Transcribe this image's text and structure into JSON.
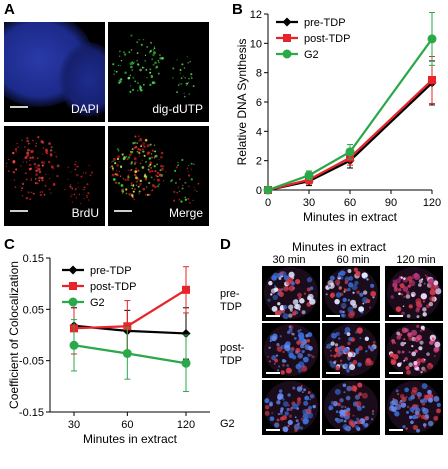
{
  "panel_letters": {
    "a": "A",
    "b": "B",
    "c": "C",
    "d": "D"
  },
  "panel_a": {
    "labels": {
      "dapi": "DAPI",
      "dig": "dig-dUTP",
      "brdu": "BrdU",
      "merge": "Merge"
    }
  },
  "panel_d": {
    "title": "Minutes in extract",
    "columns": [
      "30 min",
      "60 min",
      "120 min"
    ],
    "rows": [
      {
        "line1": "pre-",
        "line2": "TDP"
      },
      {
        "line1": "post-",
        "line2": "TDP"
      },
      {
        "line1": "G2",
        "line2": ""
      }
    ]
  },
  "colors": {
    "pre_tdp": "#000000",
    "post_tdp": "#e8232a",
    "g2": "#2aa84a"
  },
  "chart_data": [
    {
      "type": "line",
      "panel": "B",
      "xlabel": "Minutes in extract",
      "ylabel": "Relative DNA Synthesis",
      "x": [
        0,
        30,
        60,
        120
      ],
      "xticks": [
        0,
        30,
        60,
        90,
        120
      ],
      "yticks": [
        0,
        2,
        4,
        6,
        8,
        10,
        12
      ],
      "xlim": [
        0,
        120
      ],
      "ylim": [
        0,
        12
      ],
      "legend_position": "top-left",
      "grid": false,
      "series": [
        {
          "name": "pre-TDP",
          "color": "#000000",
          "marker": "diamond",
          "values": [
            0,
            0.6,
            2.0,
            7.3
          ],
          "errors": [
            0.1,
            0.3,
            0.5,
            1.5
          ]
        },
        {
          "name": "post-TDP",
          "color": "#e8232a",
          "marker": "square",
          "values": [
            0,
            0.7,
            2.2,
            7.5
          ],
          "errors": [
            0.1,
            0.3,
            0.5,
            1.6
          ]
        },
        {
          "name": "G2",
          "color": "#2aa84a",
          "marker": "circle",
          "values": [
            0,
            1.0,
            2.6,
            10.3
          ],
          "errors": [
            0.1,
            0.3,
            0.5,
            1.8
          ]
        }
      ]
    },
    {
      "type": "line",
      "panel": "C",
      "xlabel": "Minutes in extract",
      "ylabel": "Coefficient of Colocalization",
      "categories": [
        "30",
        "60",
        "120"
      ],
      "yticks": [
        -0.15,
        -0.05,
        0.05,
        0.15
      ],
      "ytick_labels": [
        "-0.15",
        "-0.05",
        "0.05",
        "0.15"
      ],
      "ylim": [
        -0.15,
        0.15
      ],
      "legend_position": "top-left",
      "grid": false,
      "series": [
        {
          "name": "pre-TDP",
          "color": "#000000",
          "marker": "diamond",
          "values": [
            0.018,
            0.008,
            0.003
          ],
          "errors": [
            0.035,
            0.04,
            0.05
          ]
        },
        {
          "name": "post-TDP",
          "color": "#e8232a",
          "marker": "square",
          "values": [
            0.013,
            0.017,
            0.088
          ],
          "errors": [
            0.05,
            0.05,
            0.045
          ]
        },
        {
          "name": "G2",
          "color": "#2aa84a",
          "marker": "circle",
          "values": [
            -0.02,
            -0.036,
            -0.055
          ],
          "errors": [
            0.05,
            0.05,
            0.055
          ]
        }
      ]
    }
  ]
}
